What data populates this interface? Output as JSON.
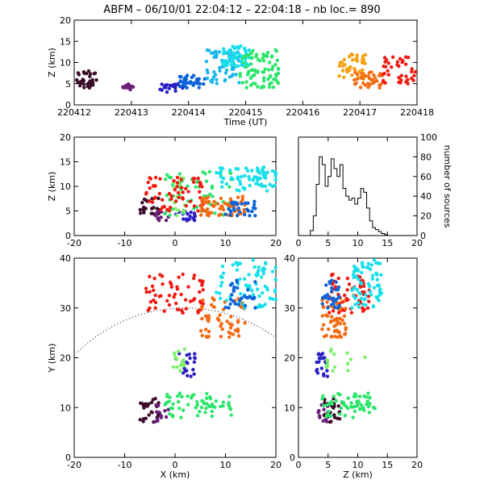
{
  "title": "ABFM – 06/10/01 22:04:12 – 22:04:18 – nb loc.=    890",
  "colors": [
    "#3a0b2a",
    "#6a1f7a",
    "#2c1fc4",
    "#0a63d8",
    "#19b7ea",
    "#16e0ea",
    "#2be66a",
    "#7df06a",
    "#f4a113",
    "#f46a12",
    "#f01a12",
    "#c80c0c"
  ],
  "chart_data": [
    {
      "id": "time_height",
      "type": "scatter",
      "xlabel": "Time (UT)",
      "ylabel": "Z (km)",
      "xlim": [
        0,
        6
      ],
      "ylim": [
        0,
        20
      ],
      "xticks": [
        "220412",
        "220413",
        "220414",
        "220415",
        "220416",
        "220417",
        "220418"
      ],
      "yticks": [
        0,
        5,
        10,
        15,
        20
      ],
      "clusters": [
        {
          "color": "#3a0b2a",
          "x": [
            0.0,
            0.4
          ],
          "y": [
            4,
            8
          ],
          "n": 35
        },
        {
          "color": "#6a1f7a",
          "x": [
            0.85,
            1.05
          ],
          "y": [
            3,
            5
          ],
          "n": 12
        },
        {
          "color": "#2c1fc4",
          "x": [
            1.5,
            1.9
          ],
          "y": [
            3,
            5
          ],
          "n": 20
        },
        {
          "color": "#0a63d8",
          "x": [
            1.8,
            2.3
          ],
          "y": [
            4,
            7
          ],
          "n": 35
        },
        {
          "color": "#19b7ea",
          "x": [
            2.3,
            2.9
          ],
          "y": [
            5,
            13
          ],
          "n": 60
        },
        {
          "color": "#16e0ea",
          "x": [
            2.6,
            3.1
          ],
          "y": [
            9,
            14
          ],
          "n": 50
        },
        {
          "color": "#2be66a",
          "x": [
            2.9,
            3.6
          ],
          "y": [
            4,
            13
          ],
          "n": 80
        },
        {
          "color": "#f4a113",
          "x": [
            4.6,
            5.1
          ],
          "y": [
            6,
            12
          ],
          "n": 45
        },
        {
          "color": "#f46a12",
          "x": [
            4.9,
            5.4
          ],
          "y": [
            4,
            8
          ],
          "n": 35
        },
        {
          "color": "#f01a12",
          "x": [
            5.4,
            6.0
          ],
          "y": [
            5,
            12
          ],
          "n": 40
        }
      ]
    },
    {
      "id": "xz_projection",
      "type": "scatter",
      "xlabel": "",
      "ylabel": "Z (km)",
      "xlim": [
        -20,
        20
      ],
      "ylim": [
        0,
        20
      ],
      "xticks": [
        -20,
        -10,
        0,
        10,
        20
      ],
      "yticks": [
        0,
        5,
        10,
        15,
        20
      ]
    },
    {
      "id": "altitude_histogram",
      "type": "line",
      "xlabel": "",
      "ylabel": "number of sources",
      "xlim": [
        0,
        20
      ],
      "ylim": [
        0,
        100
      ],
      "xticks": [
        0,
        5,
        10,
        15,
        20
      ],
      "yticks": [
        0,
        20,
        40,
        60,
        80,
        100
      ],
      "x": [
        2,
        2.5,
        3,
        3.5,
        4,
        4.5,
        5,
        5.5,
        6,
        6.5,
        7,
        7.5,
        8,
        8.5,
        9,
        9.5,
        10,
        10.5,
        11,
        11.5,
        12,
        12.5,
        13,
        13.5,
        14,
        14.5,
        15
      ],
      "y": [
        5,
        20,
        52,
        80,
        72,
        50,
        60,
        78,
        68,
        60,
        72,
        48,
        40,
        36,
        38,
        32,
        38,
        48,
        44,
        28,
        15,
        8,
        6,
        4,
        2,
        1,
        0
      ]
    },
    {
      "id": "plan_view",
      "type": "scatter",
      "xlabel": "X (km)",
      "ylabel": "Y (km)",
      "xlim": [
        -20,
        20
      ],
      "ylim": [
        0,
        40
      ],
      "xticks": [
        -20,
        -10,
        0,
        10,
        20
      ],
      "yticks": [
        0,
        10,
        20,
        30,
        40
      ],
      "clusters": [
        {
          "color": "#3a0b2a",
          "x": [
            -7,
            -3
          ],
          "y": [
            7,
            12
          ],
          "n": 25
        },
        {
          "color": "#6a1f7a",
          "x": [
            -4,
            -1
          ],
          "y": [
            7,
            11
          ],
          "n": 12
        },
        {
          "color": "#2c1fc4",
          "x": [
            0,
            4
          ],
          "y": [
            16,
            21
          ],
          "n": 20
        },
        {
          "color": "#2be66a",
          "x": [
            -2,
            12
          ],
          "y": [
            8,
            13
          ],
          "n": 60
        },
        {
          "color": "#7df06a",
          "x": [
            -1,
            2
          ],
          "y": [
            17,
            22
          ],
          "n": 15
        },
        {
          "color": "#f01a12",
          "x": [
            -6,
            6
          ],
          "y": [
            29,
            37
          ],
          "n": 60
        },
        {
          "color": "#f46a12",
          "x": [
            5,
            14
          ],
          "y": [
            24,
            32
          ],
          "n": 60
        },
        {
          "color": "#16e0ea",
          "x": [
            8,
            20
          ],
          "y": [
            30,
            40
          ],
          "n": 70
        },
        {
          "color": "#0a63d8",
          "x": [
            10,
            16
          ],
          "y": [
            30,
            36
          ],
          "n": 30
        }
      ],
      "arc": {
        "center_x": 2,
        "center_y": 0,
        "radius": 30
      }
    },
    {
      "id": "yz_projection",
      "type": "scatter",
      "xlabel": "Z (km)",
      "ylabel": "",
      "xlim": [
        0,
        20
      ],
      "ylim": [
        0,
        40
      ],
      "xticks": [
        0,
        5,
        10,
        15,
        20
      ],
      "yticks": [
        0,
        10,
        20,
        30,
        40
      ]
    }
  ]
}
